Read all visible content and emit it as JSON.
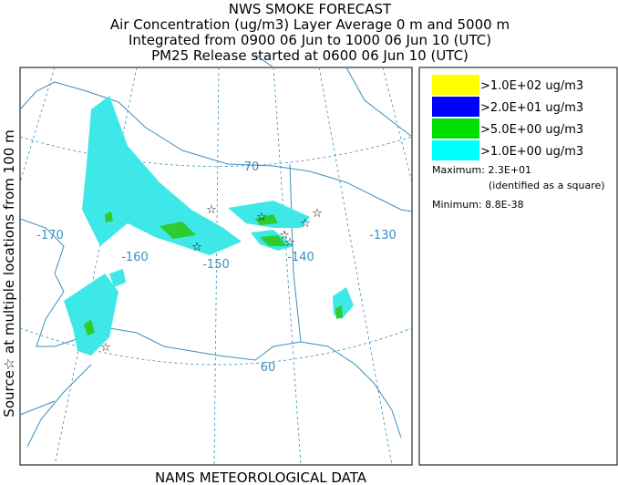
{
  "header": {
    "title": "NWS SMOKE FORECAST",
    "lines": [
      "Air Concentration (ug/m3) Layer Average    0 m and  5000 m",
      "Integrated from 0900 06 Jun to 1000 06 Jun 10 (UTC)",
      "PM25 Release started at 0600 06 Jun 10 (UTC)"
    ]
  },
  "side_label": "Source☆  at multiple locations    from   100 m",
  "map": {
    "labels": [
      {
        "text": "-170"
      },
      {
        "text": "-160"
      },
      {
        "text": "-150"
      },
      {
        "text": "-140"
      },
      {
        "text": "-130"
      },
      {
        "text": "70"
      },
      {
        "text": "60"
      }
    ]
  },
  "legend": {
    "entries": [
      {
        "label": ">1.0E+02 ug/m3",
        "color": "#ffff00"
      },
      {
        "label": ">2.0E+01 ug/m3",
        "color": "#0000ff"
      },
      {
        "label": ">5.0E+00 ug/m3",
        "color": "#00e000"
      },
      {
        "label": ">1.0E+00 ug/m3",
        "color": "#00ffff"
      }
    ],
    "maximum": "Maximum: 2.3E+01",
    "maximum_note": "(identified as a square)",
    "minimum": "Minimum: 8.8E-38"
  },
  "footer": "NAMS METEOROLOGICAL DATA"
}
